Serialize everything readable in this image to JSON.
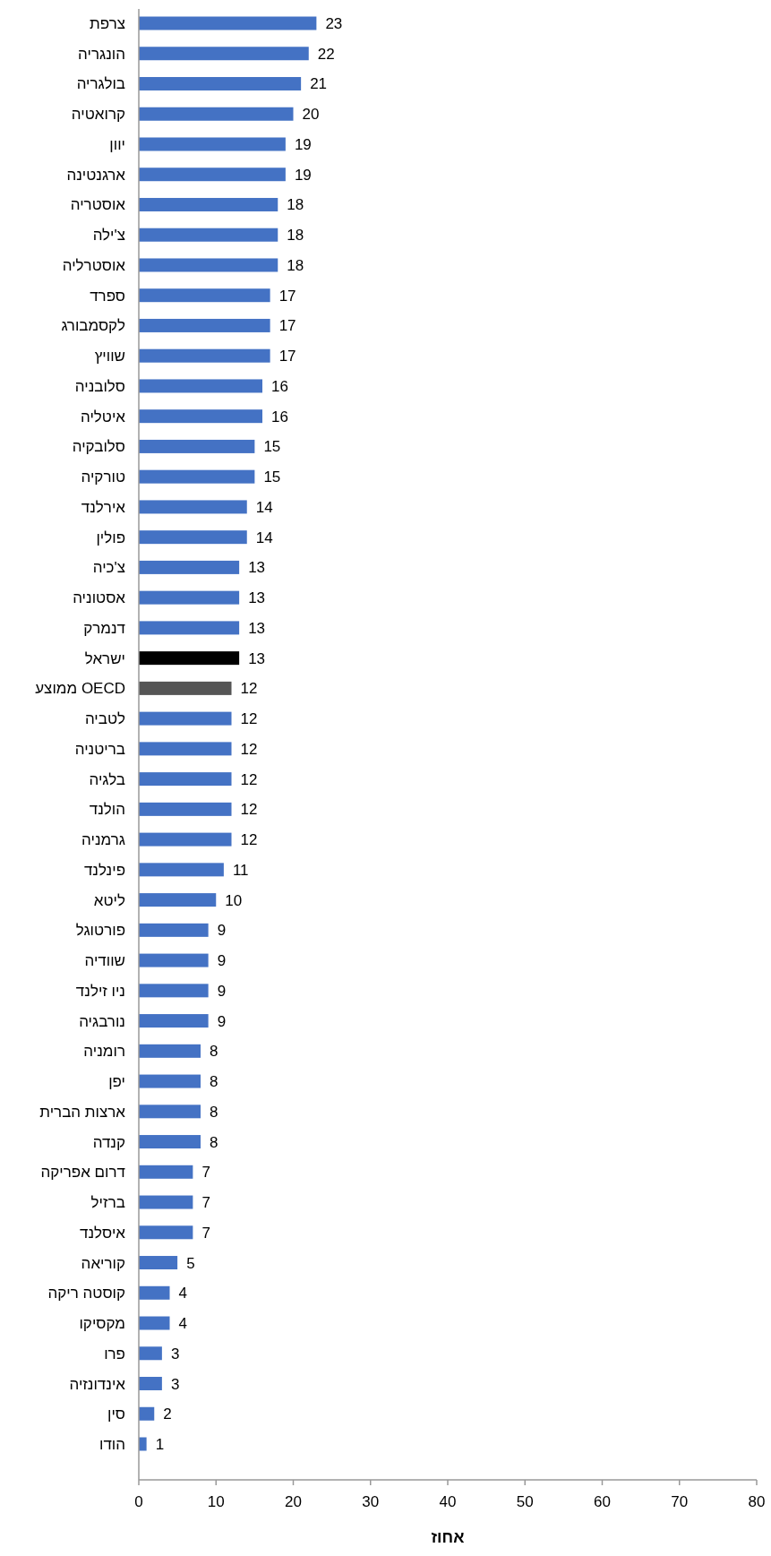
{
  "chart_data": {
    "type": "bar",
    "orientation": "horizontal",
    "xlabel": "אחוז",
    "categories": [
      "צרפת",
      "הונגריה",
      "בולגריה",
      "קרואטיה",
      "יוון",
      "ארגנטינה",
      "אוסטריה",
      "צ'ילה",
      "אוסטרליה",
      "ספרד",
      "לקסמבורג",
      "שוויץ",
      "סלובניה",
      "איטליה",
      "סלובקיה",
      "טורקיה",
      "אירלנד",
      "פולין",
      "צ'כיה",
      "אסטוניה",
      "דנמרק",
      "ישראל",
      "ממוצע OECD",
      "לטביה",
      "בריטניה",
      "בלגיה",
      "הולנד",
      "גרמניה",
      "פינלנד",
      "ליטא",
      "פורטוגל",
      "שוודיה",
      "ניו זילנד",
      "נורבגיה",
      "רומניה",
      "יפן",
      "ארצות הברית",
      "קנדה",
      "דרום אפריקה",
      "ברזיל",
      "איסלנד",
      "קוריאה",
      "קוסטה ריקה",
      "מקסיקו",
      "פרו",
      "אינדונזיה",
      "סין",
      "הודו"
    ],
    "values": [
      23,
      22,
      21,
      20,
      19,
      19,
      18,
      18,
      18,
      17,
      17,
      17,
      16,
      16,
      15,
      15,
      14,
      14,
      13,
      13,
      13,
      13,
      12,
      12,
      12,
      12,
      12,
      12,
      11,
      10,
      9,
      9,
      9,
      9,
      8,
      8,
      8,
      8,
      7,
      7,
      7,
      5,
      4,
      4,
      3,
      3,
      2,
      1
    ],
    "colors": [
      "#4472c4",
      "#4472c4",
      "#4472c4",
      "#4472c4",
      "#4472c4",
      "#4472c4",
      "#4472c4",
      "#4472c4",
      "#4472c4",
      "#4472c4",
      "#4472c4",
      "#4472c4",
      "#4472c4",
      "#4472c4",
      "#4472c4",
      "#4472c4",
      "#4472c4",
      "#4472c4",
      "#4472c4",
      "#4472c4",
      "#4472c4",
      "#000000",
      "#555555",
      "#4472c4",
      "#4472c4",
      "#4472c4",
      "#4472c4",
      "#4472c4",
      "#4472c4",
      "#4472c4",
      "#4472c4",
      "#4472c4",
      "#4472c4",
      "#4472c4",
      "#4472c4",
      "#4472c4",
      "#4472c4",
      "#4472c4",
      "#4472c4",
      "#4472c4",
      "#4472c4",
      "#4472c4",
      "#4472c4",
      "#4472c4",
      "#4472c4",
      "#4472c4",
      "#4472c4",
      "#4472c4"
    ],
    "xlim": [
      0,
      80
    ],
    "xticks": [
      0,
      10,
      20,
      30,
      40,
      50,
      60,
      70,
      80
    ],
    "data_labels": true
  }
}
